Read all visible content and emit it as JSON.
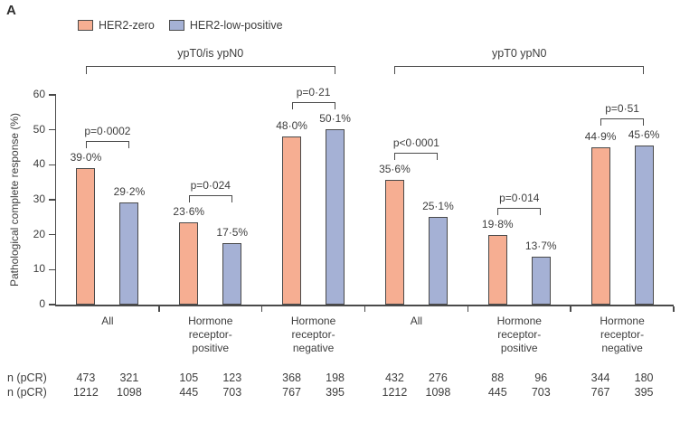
{
  "panel_label": "A",
  "legend": [
    {
      "label": "HER2-zero",
      "color": "#F6AE92"
    },
    {
      "label": "HER2-low-positive",
      "color": "#A5B1D5"
    }
  ],
  "colors": {
    "her2_zero": "#F6AE92",
    "her2_low_positive": "#A5B1D5",
    "bar_border": "#4a4a4a",
    "axis": "#4a4a4a",
    "text": "#3d3d3d"
  },
  "chart_data": {
    "type": "bar",
    "title": "",
    "xlabel": "",
    "ylabel": "Pathological complete response (%)",
    "ylim": [
      0,
      60
    ],
    "yticks": [
      0,
      10,
      20,
      30,
      40,
      50,
      60
    ],
    "grid": false,
    "legend_position": "top-left",
    "series": [
      {
        "name": "HER2-zero",
        "color": "#F6AE92"
      },
      {
        "name": "HER2-low-positive",
        "color": "#A5B1D5"
      }
    ],
    "groups": [
      {
        "title": "ypT0/is ypN0",
        "category_indexes": [
          0,
          1,
          2
        ]
      },
      {
        "title": "ypT0 ypN0",
        "category_indexes": [
          3,
          4,
          5
        ]
      }
    ],
    "categories": [
      {
        "label_lines": [
          "All"
        ],
        "values": [
          39.0,
          29.2
        ],
        "value_labels": [
          "39·0%",
          "29·2%"
        ],
        "p_label": "p=0·0002",
        "n_row1": [
          473,
          321
        ],
        "n_row2": [
          1212,
          1098
        ]
      },
      {
        "label_lines": [
          "Hormone",
          "receptor-",
          "positive"
        ],
        "values": [
          23.6,
          17.5
        ],
        "value_labels": [
          "23·6%",
          "17·5%"
        ],
        "p_label": "p=0·024",
        "n_row1": [
          105,
          123
        ],
        "n_row2": [
          445,
          703
        ]
      },
      {
        "label_lines": [
          "Hormone",
          "receptor-",
          "negative"
        ],
        "values": [
          48.0,
          50.1
        ],
        "value_labels": [
          "48·0%",
          "50·1%"
        ],
        "p_label": "p=0·21",
        "n_row1": [
          368,
          198
        ],
        "n_row2": [
          767,
          395
        ]
      },
      {
        "label_lines": [
          "All"
        ],
        "values": [
          35.6,
          25.1
        ],
        "value_labels": [
          "35·6%",
          "25·1%"
        ],
        "p_label": "p<0·0001",
        "n_row1": [
          432,
          276
        ],
        "n_row2": [
          1212,
          1098
        ]
      },
      {
        "label_lines": [
          "Hormone",
          "receptor-",
          "positive"
        ],
        "values": [
          19.8,
          13.7
        ],
        "value_labels": [
          "19·8%",
          "13·7%"
        ],
        "p_label": "p=0·014",
        "n_row1": [
          88,
          96
        ],
        "n_row2": [
          445,
          703
        ]
      },
      {
        "label_lines": [
          "Hormone",
          "receptor-",
          "negative"
        ],
        "values": [
          44.9,
          45.6
        ],
        "value_labels": [
          "44·9%",
          "45·6%"
        ],
        "p_label": "p=0·51",
        "n_row1": [
          344,
          180
        ],
        "n_row2": [
          767,
          395
        ]
      }
    ],
    "table_row_labels": [
      "n (pCR)",
      "n (pCR)"
    ]
  }
}
